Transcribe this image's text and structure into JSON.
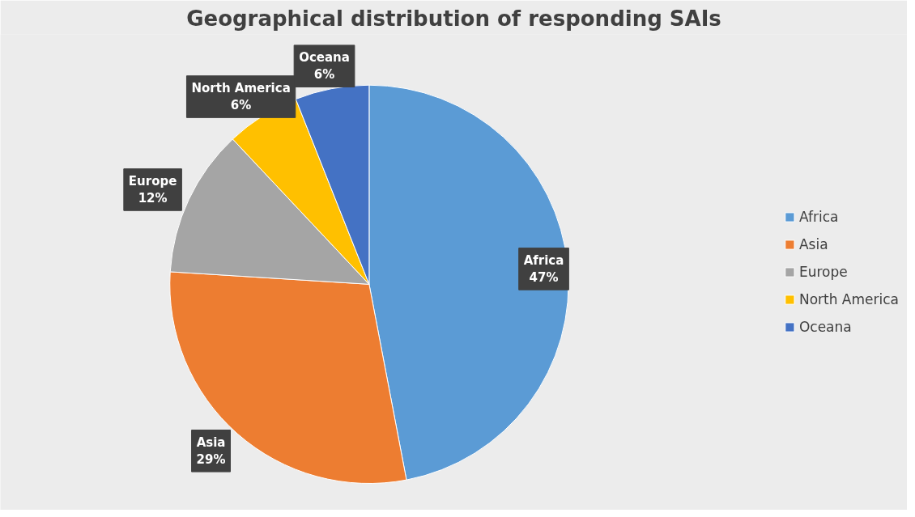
{
  "chart_data": {
    "type": "pie",
    "title": "Geographical distribution of responding SAIs",
    "categories": [
      "Africa",
      "Asia",
      "Europe",
      "North America",
      "Oceana"
    ],
    "values": [
      47,
      29,
      12,
      6,
      6
    ],
    "colors": [
      "#5b9bd5",
      "#ed7d31",
      "#a5a5a5",
      "#ffc000",
      "#4472c4"
    ],
    "value_labels": [
      "47%",
      "29%",
      "12%",
      "6%",
      "6%"
    ],
    "legend": "right"
  }
}
